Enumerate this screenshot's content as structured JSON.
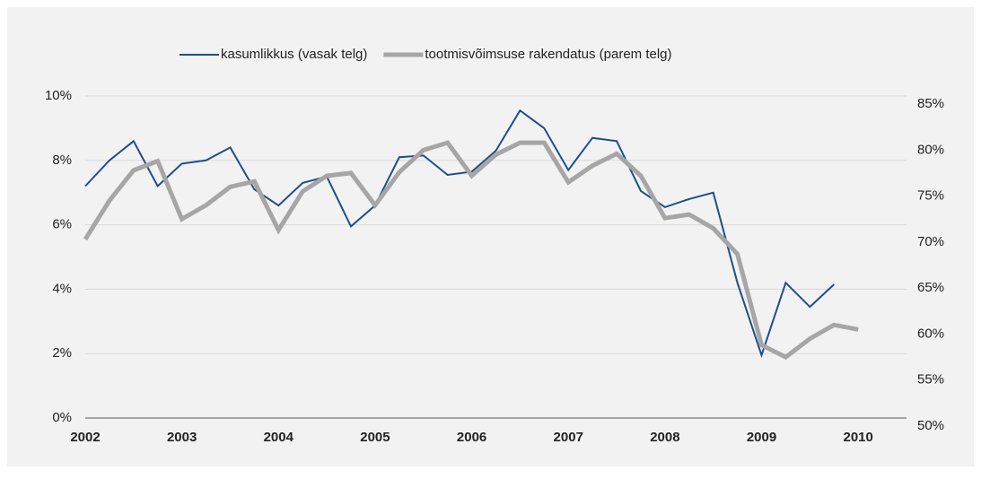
{
  "chart_data": {
    "type": "line",
    "x": [
      2002,
      2002.25,
      2002.5,
      2002.75,
      2003,
      2003.25,
      2003.5,
      2003.75,
      2004,
      2004.25,
      2004.5,
      2004.75,
      2005,
      2005.25,
      2005.5,
      2005.75,
      2006,
      2006.25,
      2006.5,
      2006.75,
      2007,
      2007.25,
      2007.5,
      2007.75,
      2008,
      2008.25,
      2008.5,
      2008.75,
      2009,
      2009.25,
      2009.5,
      2009.75,
      2010
    ],
    "series": [
      {
        "name": "kasumlikkus (vasak telg)",
        "color": "#1f4e8c",
        "axis": "y",
        "values": [
          7.2,
          8.0,
          8.6,
          7.2,
          7.9,
          8.0,
          8.4,
          7.1,
          6.6,
          7.3,
          7.5,
          5.95,
          6.6,
          8.1,
          8.15,
          7.55,
          7.65,
          8.3,
          9.55,
          9.0,
          7.7,
          8.7,
          8.6,
          7.05,
          6.55,
          6.8,
          7.0,
          4.2,
          1.95,
          4.2,
          3.45,
          4.15,
          null
        ]
      },
      {
        "name": "tootmisvõimsuse rakendatus (parem telg)",
        "color": "#a6a6a6",
        "axis": "y2",
        "values": [
          70.3,
          74.5,
          77.8,
          78.8,
          72.5,
          74.0,
          76.0,
          76.6,
          71.3,
          75.5,
          77.2,
          77.5,
          74.0,
          77.6,
          80.0,
          80.8,
          77.2,
          79.5,
          80.8,
          80.8,
          76.5,
          78.3,
          79.6,
          77.2,
          72.6,
          73.0,
          71.5,
          68.7,
          58.8,
          57.5,
          59.5,
          61.0,
          60.5
        ]
      }
    ],
    "xlim": [
      2002,
      2010.5
    ],
    "xticks": [
      2002,
      2003,
      2004,
      2005,
      2006,
      2007,
      2008,
      2009,
      2010
    ],
    "ylim": [
      0,
      10
    ],
    "yticks": [
      {
        "value": 0,
        "label": "0%"
      },
      {
        "value": 2,
        "label": "2%"
      },
      {
        "value": 4,
        "label": "4%"
      },
      {
        "value": 6,
        "label": "6%"
      },
      {
        "value": 8,
        "label": "8%"
      },
      {
        "value": 10,
        "label": "10%"
      }
    ],
    "y2lim": [
      50,
      85
    ],
    "y2ticks": [
      {
        "value": 50,
        "label": "50%"
      },
      {
        "value": 55,
        "label": "55%"
      },
      {
        "value": 60,
        "label": "60%"
      },
      {
        "value": 65,
        "label": "65%"
      },
      {
        "value": 70,
        "label": "70%"
      },
      {
        "value": 75,
        "label": "75%"
      },
      {
        "value": 80,
        "label": "80%"
      },
      {
        "value": 85,
        "label": "85%"
      }
    ],
    "grid": true,
    "legend": "top"
  }
}
